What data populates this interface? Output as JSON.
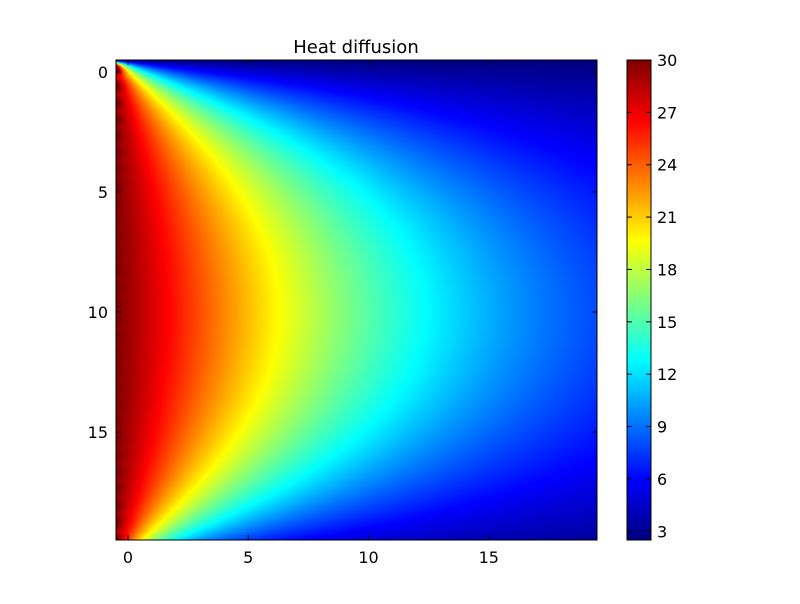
{
  "chart_data": {
    "type": "heatmap",
    "title": "Heat diffusion",
    "xlabel": "",
    "ylabel": "",
    "colormap": "jet",
    "grid": false,
    "x_ticks": [
      0,
      5,
      10,
      15
    ],
    "y_ticks": [
      0,
      5,
      10,
      15
    ],
    "xlim": [
      -0.5,
      19.5
    ],
    "ylim": [
      19.5,
      -0.5
    ],
    "grid_shape": [
      20,
      20
    ],
    "boundary_temperature_left": 30,
    "colorbar": {
      "min": 2.5,
      "max": 30,
      "ticks": [
        3,
        6,
        9,
        12,
        15,
        18,
        21,
        24,
        27,
        30
      ]
    }
  }
}
